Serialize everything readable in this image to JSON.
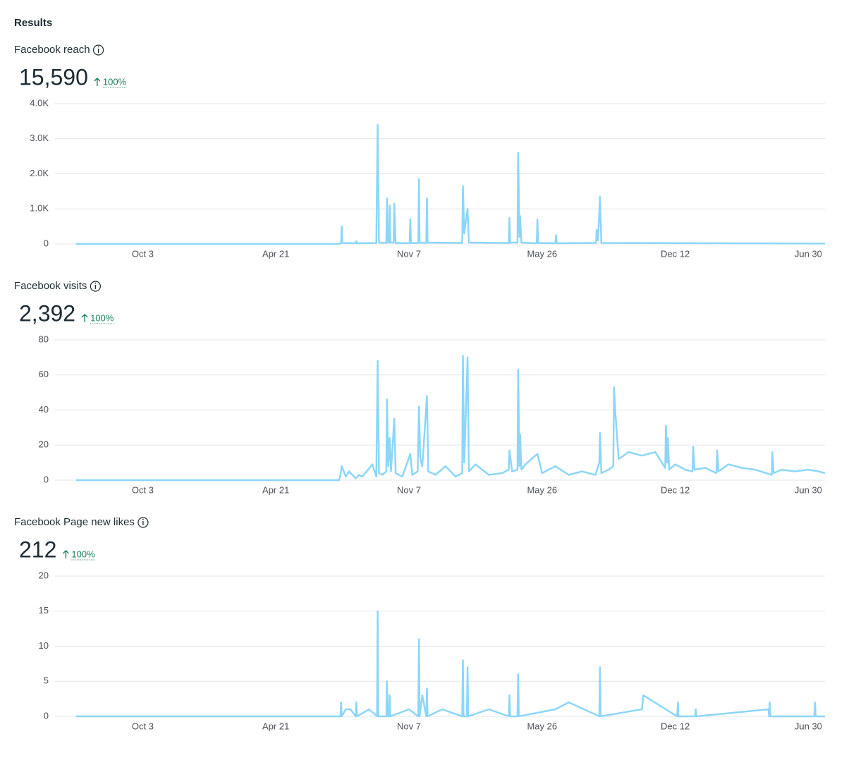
{
  "header": {
    "title": "Results"
  },
  "chart_data": [
    {
      "type": "line",
      "title": "Facebook reach",
      "total": "15,590",
      "change": "100%",
      "color": "#8dd6f9",
      "grid": true,
      "xlim": [
        -100,
        1025
      ],
      "xticks": [
        {
          "value": 0,
          "label": "Oct 3"
        },
        {
          "value": 200,
          "label": "Apr 21"
        },
        {
          "value": 400,
          "label": "Nov 7"
        },
        {
          "value": 600,
          "label": "May 26"
        },
        {
          "value": 800,
          "label": "Dec 12"
        },
        {
          "value": 1000,
          "label": "Jun 30"
        }
      ],
      "ylim": [
        0,
        4000
      ],
      "yticks": [
        0,
        {
          "value": 1000,
          "label": "1.0K"
        },
        {
          "value": 2000,
          "label": "2.0K"
        },
        {
          "value": 3000,
          "label": "3.0K"
        },
        {
          "value": 4000,
          "label": "4.0K"
        }
      ],
      "x": [
        -100,
        296,
        298,
        299,
        300,
        320,
        321,
        322,
        351,
        353,
        355,
        366,
        367,
        368,
        370,
        371,
        372,
        377,
        378,
        380,
        401,
        402,
        403,
        414,
        415,
        416,
        426,
        427,
        428,
        480,
        481,
        483,
        488,
        490,
        550,
        551,
        552,
        563,
        564,
        566,
        567,
        569,
        592,
        593,
        594,
        620,
        621,
        622,
        681,
        682,
        684,
        687,
        689,
        1025
      ],
      "values": [
        0,
        0,
        30,
        500,
        30,
        20,
        80,
        20,
        30,
        3400,
        40,
        30,
        1300,
        50,
        40,
        1100,
        40,
        40,
        1150,
        30,
        20,
        700,
        30,
        30,
        1850,
        40,
        30,
        1300,
        40,
        30,
        1650,
        300,
        1000,
        40,
        30,
        750,
        40,
        40,
        2600,
        200,
        800,
        40,
        20,
        700,
        30,
        20,
        250,
        20,
        30,
        400,
        100,
        1350,
        30,
        10
      ]
    },
    {
      "type": "line",
      "title": "Facebook visits",
      "total": "2,392",
      "change": "100%",
      "color": "#8dd6f9",
      "grid": true,
      "xlim": [
        -100,
        1025
      ],
      "xticks": [
        {
          "value": 0,
          "label": "Oct 3"
        },
        {
          "value": 200,
          "label": "Apr 21"
        },
        {
          "value": 400,
          "label": "Nov 7"
        },
        {
          "value": 600,
          "label": "May 26"
        },
        {
          "value": 800,
          "label": "Dec 12"
        },
        {
          "value": 1000,
          "label": "Jun 30"
        }
      ],
      "ylim": [
        0,
        80
      ],
      "yticks": [
        0,
        20,
        40,
        60,
        80
      ],
      "x": [
        -100,
        295,
        297,
        299,
        305,
        310,
        320,
        325,
        330,
        345,
        351,
        353,
        355,
        360,
        366,
        367,
        369,
        371,
        373,
        378,
        380,
        390,
        402,
        405,
        413,
        415,
        417,
        420,
        427,
        429,
        440,
        455,
        470,
        480,
        481,
        483,
        488,
        490,
        500,
        520,
        540,
        550,
        551,
        555,
        563,
        564,
        566,
        567,
        569,
        575,
        593,
        600,
        620,
        640,
        660,
        680,
        686,
        687,
        689,
        700,
        707,
        708,
        710,
        715,
        730,
        750,
        770,
        785,
        786,
        788,
        789,
        791,
        800,
        815,
        826,
        827,
        829,
        845,
        862,
        863,
        865,
        880,
        900,
        920,
        945,
        946,
        948,
        960,
        980,
        1000,
        1015,
        1025
      ],
      "values": [
        0,
        0,
        3,
        8,
        2,
        5,
        1,
        3,
        2,
        9,
        2,
        68,
        4,
        3,
        5,
        46,
        8,
        24,
        5,
        35,
        4,
        2,
        15,
        3,
        5,
        42,
        13,
        8,
        48,
        5,
        3,
        8,
        2,
        4,
        71,
        10,
        70,
        5,
        9,
        3,
        4,
        6,
        17,
        5,
        6,
        63,
        8,
        26,
        6,
        9,
        15,
        4,
        8,
        3,
        5,
        3,
        10,
        27,
        4,
        6,
        8,
        53,
        39,
        12,
        16,
        14,
        16,
        7,
        31,
        10,
        24,
        6,
        9,
        6,
        5,
        19,
        6,
        7,
        4,
        17,
        5,
        9,
        7,
        6,
        3,
        16,
        4,
        6,
        5,
        6,
        5,
        4
      ]
    },
    {
      "type": "line",
      "title": "Facebook Page new likes",
      "total": "212",
      "change": "100%",
      "color": "#8dd6f9",
      "grid": true,
      "xlim": [
        -100,
        1025
      ],
      "xticks": [
        {
          "value": 0,
          "label": "Oct 3"
        },
        {
          "value": 200,
          "label": "Apr 21"
        },
        {
          "value": 400,
          "label": "Nov 7"
        },
        {
          "value": 600,
          "label": "May 26"
        },
        {
          "value": 800,
          "label": "Dec 12"
        },
        {
          "value": 1000,
          "label": "Jun 30"
        }
      ],
      "ylim": [
        0,
        20
      ],
      "yticks": [
        0,
        5,
        10,
        15,
        20
      ],
      "x": [
        -100,
        297,
        298,
        299,
        305,
        312,
        320,
        321,
        322,
        340,
        352,
        353,
        354,
        366,
        367,
        368,
        370,
        371,
        372,
        400,
        414,
        415,
        416,
        420,
        426,
        427,
        428,
        450,
        480,
        481,
        482,
        487,
        488,
        489,
        520,
        550,
        551,
        552,
        563,
        564,
        565,
        620,
        640,
        686,
        687,
        688,
        750,
        752,
        803,
        804,
        805,
        830,
        831,
        832,
        940,
        941,
        942,
        943,
        1009,
        1010,
        1011,
        1025
      ],
      "values": [
        0,
        0,
        2,
        0,
        1,
        1,
        0,
        2,
        0,
        1,
        0,
        15,
        0,
        0,
        5,
        0,
        0,
        3,
        0,
        1,
        0,
        11,
        0,
        3,
        0,
        4,
        0,
        1,
        0,
        8,
        0,
        0,
        7,
        0,
        1,
        0,
        3,
        0,
        0,
        6,
        0,
        1,
        2,
        0,
        7,
        0,
        1,
        3,
        0,
        2,
        0,
        0,
        1,
        0,
        1,
        0,
        2,
        0,
        0,
        2,
        0,
        0
      ]
    }
  ]
}
